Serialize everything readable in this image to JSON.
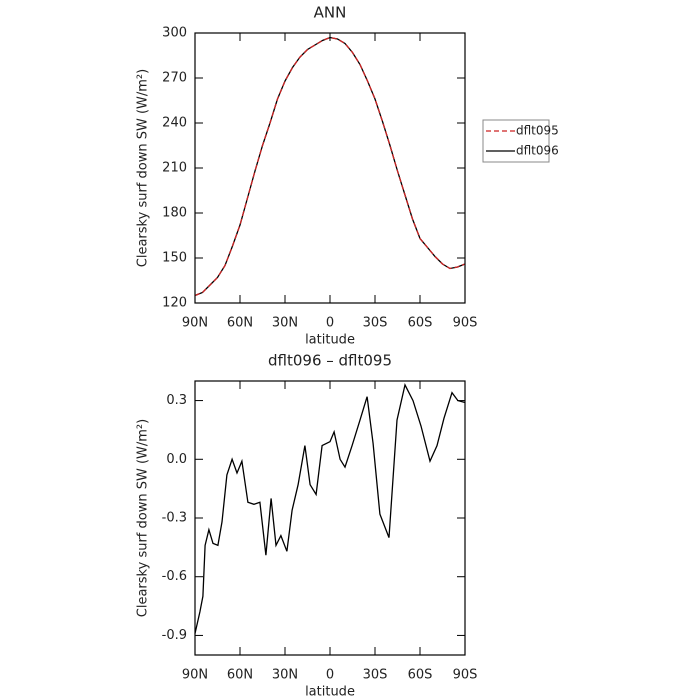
{
  "chart_data": [
    {
      "type": "line",
      "title": "ANN",
      "x_label": "latitude",
      "y_label": "Clearsky surf down SW (W/m²)",
      "x": [
        90,
        85,
        80,
        75,
        70,
        65,
        60,
        55,
        50,
        45,
        40,
        35,
        30,
        25,
        20,
        15,
        10,
        5,
        0,
        -5,
        -10,
        -15,
        -20,
        -25,
        -30,
        -35,
        -40,
        -45,
        -50,
        -55,
        -60,
        -65,
        -70,
        -75,
        -80,
        -85,
        -90
      ],
      "series": [
        {
          "name": "dflt096",
          "color": "#000000",
          "dash": false,
          "values": [
            125,
            127,
            132,
            137,
            145,
            158,
            172,
            190,
            208,
            225,
            240,
            256,
            268,
            277,
            284,
            289,
            292,
            295,
            297,
            296,
            293,
            287,
            279,
            268,
            256,
            241,
            225,
            208,
            192,
            176,
            163,
            157,
            151,
            146,
            143,
            144,
            146
          ]
        },
        {
          "name": "dflt095",
          "color": "#cc2222",
          "dash": true,
          "values": [
            125,
            127,
            132,
            137,
            145,
            158,
            172,
            190,
            208,
            225,
            240,
            256,
            268,
            277,
            284,
            289,
            292,
            295,
            297,
            296,
            293,
            287,
            279,
            268,
            256,
            241,
            225,
            208,
            192,
            176,
            163,
            157,
            151,
            146,
            143,
            144,
            146
          ]
        }
      ],
      "xlim": [
        90,
        -90
      ],
      "xticks": [
        {
          "value": 90,
          "label": "90N"
        },
        {
          "value": 60,
          "label": "60N"
        },
        {
          "value": 30,
          "label": "30N"
        },
        0,
        {
          "value": -30,
          "label": "30S"
        },
        {
          "value": -60,
          "label": "60S"
        },
        {
          "value": -90,
          "label": "90S"
        }
      ],
      "ylim": [
        120,
        300
      ],
      "yticks": [
        120,
        150,
        180,
        210,
        240,
        270,
        300
      ],
      "legend": "right"
    },
    {
      "type": "line",
      "title": "dflt096 – dflt095",
      "x_label": "latitude",
      "y_label": "Clearsky surf down SW (W/m²)",
      "x": [
        90,
        86.7,
        84.7,
        83.3,
        80.7,
        78,
        74.7,
        72,
        68.7,
        65.3,
        62,
        58.7,
        54.7,
        50.7,
        46.7,
        42.7,
        39.3,
        36,
        32.7,
        28.7,
        25.3,
        21.3,
        16.7,
        13.3,
        9.3,
        5.3,
        0,
        -2.7,
        -6.7,
        -10,
        -14.7,
        -20,
        -24.7,
        -28.7,
        -33.3,
        -39.3,
        -44.7,
        -50,
        -55.3,
        -60.7,
        -66.7,
        -71.3,
        -76,
        -81.3,
        -85.3,
        -90
      ],
      "values": [
        -0.89,
        -0.78,
        -0.7,
        -0.44,
        -0.36,
        -0.43,
        -0.44,
        -0.32,
        -0.08,
        0.0,
        -0.07,
        -0.01,
        -0.22,
        -0.23,
        -0.22,
        -0.49,
        -0.2,
        -0.44,
        -0.39,
        -0.47,
        -0.26,
        -0.13,
        0.07,
        -0.13,
        -0.18,
        0.07,
        0.09,
        0.14,
        0.0,
        -0.04,
        0.07,
        0.2,
        0.32,
        0.08,
        -0.28,
        -0.4,
        0.2,
        0.38,
        0.3,
        0.17,
        -0.01,
        0.07,
        0.21,
        0.34,
        0.3,
        0.29
      ],
      "color": "#000000",
      "xlim": [
        90,
        -90
      ],
      "xticks": [
        {
          "value": 90,
          "label": "90N"
        },
        {
          "value": 60,
          "label": "60N"
        },
        {
          "value": 30,
          "label": "30N"
        },
        0,
        {
          "value": -30,
          "label": "30S"
        },
        {
          "value": -60,
          "label": "60S"
        },
        {
          "value": -90,
          "label": "90S"
        }
      ],
      "ylim": [
        -1.0,
        0.4
      ],
      "yticks": [
        -0.9,
        -0.6,
        -0.3,
        {
          "value": 0,
          "label": "0.0"
        },
        0.3
      ]
    }
  ]
}
